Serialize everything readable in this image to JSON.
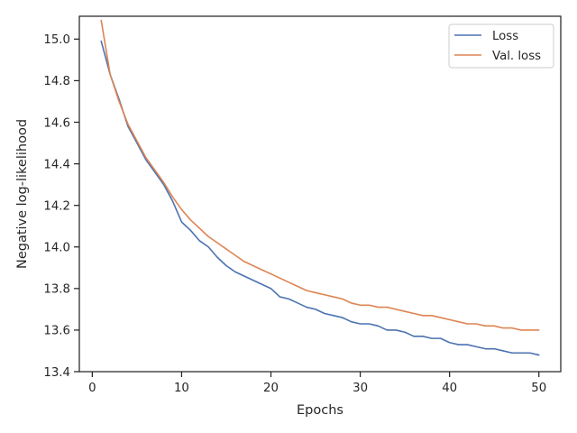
{
  "chart_data": {
    "type": "line",
    "xlabel": "Epochs",
    "ylabel": "Negative log-likelihood",
    "xlim": [
      -1.45,
      52.45
    ],
    "ylim": [
      13.4,
      15.11
    ],
    "xticks": [
      0,
      10,
      20,
      30,
      40,
      50
    ],
    "xtick_labels": [
      "0",
      "10",
      "20",
      "30",
      "40",
      "50"
    ],
    "yticks": [
      13.4,
      13.6,
      13.8,
      14.0,
      14.2,
      14.4,
      14.6,
      14.8,
      15.0
    ],
    "ytick_labels": [
      "13.4",
      "13.6",
      "13.8",
      "14.0",
      "14.2",
      "14.4",
      "14.6",
      "14.8",
      "15.0"
    ],
    "grid": false,
    "legend_position": "top-right",
    "x": [
      1,
      2,
      3,
      4,
      5,
      6,
      7,
      8,
      9,
      10,
      11,
      12,
      13,
      14,
      15,
      16,
      17,
      18,
      19,
      20,
      21,
      22,
      23,
      24,
      25,
      26,
      27,
      28,
      29,
      30,
      31,
      32,
      33,
      34,
      35,
      36,
      37,
      38,
      39,
      40,
      41,
      42,
      43,
      44,
      45,
      46,
      47,
      48,
      49,
      50
    ],
    "series": [
      {
        "name": "Loss",
        "color": "#4c72b0",
        "values": [
          14.99,
          14.83,
          14.71,
          14.58,
          14.5,
          14.42,
          14.36,
          14.3,
          14.22,
          14.12,
          14.08,
          14.03,
          14.0,
          13.95,
          13.91,
          13.88,
          13.86,
          13.84,
          13.82,
          13.8,
          13.76,
          13.75,
          13.73,
          13.71,
          13.7,
          13.68,
          13.67,
          13.66,
          13.64,
          13.63,
          13.63,
          13.62,
          13.6,
          13.6,
          13.59,
          13.57,
          13.57,
          13.56,
          13.56,
          13.54,
          13.53,
          13.53,
          13.52,
          13.51,
          13.51,
          13.5,
          13.49,
          13.49,
          13.49,
          13.48
        ]
      },
      {
        "name": "Val. loss",
        "color": "#dd8452",
        "values": [
          15.09,
          14.83,
          14.7,
          14.59,
          14.51,
          14.43,
          14.37,
          14.31,
          14.24,
          14.18,
          14.13,
          14.09,
          14.05,
          14.02,
          13.99,
          13.96,
          13.93,
          13.91,
          13.89,
          13.87,
          13.85,
          13.83,
          13.81,
          13.79,
          13.78,
          13.77,
          13.76,
          13.75,
          13.73,
          13.72,
          13.72,
          13.71,
          13.71,
          13.7,
          13.69,
          13.68,
          13.67,
          13.67,
          13.66,
          13.65,
          13.64,
          13.63,
          13.63,
          13.62,
          13.62,
          13.61,
          13.61,
          13.6,
          13.6,
          13.6
        ]
      }
    ]
  }
}
